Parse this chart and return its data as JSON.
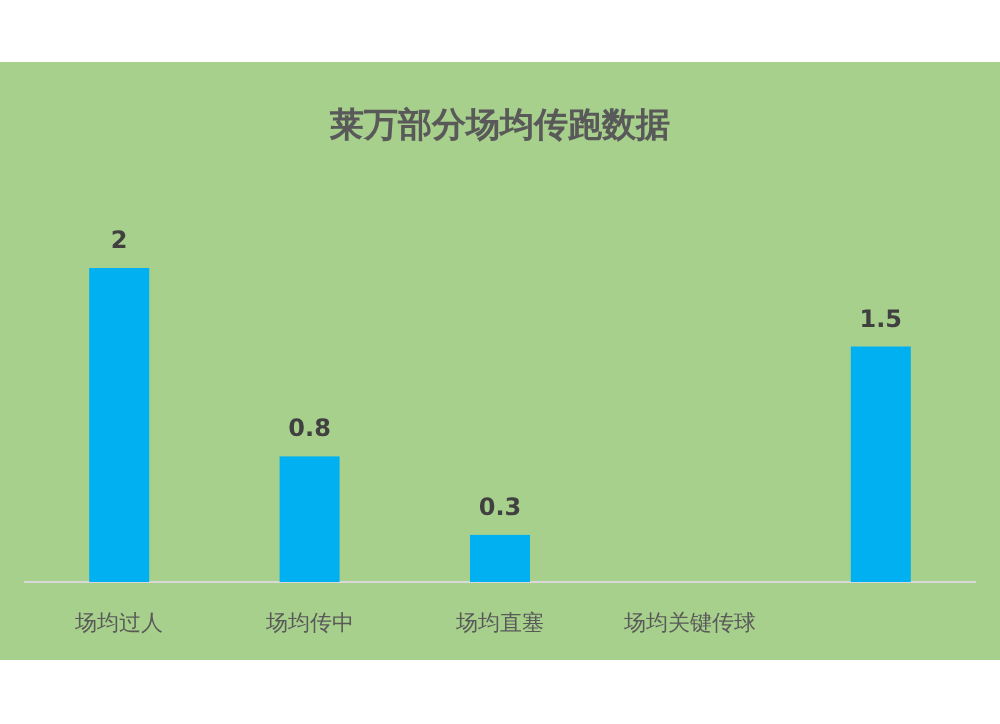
{
  "chart_data": {
    "type": "bar",
    "title": "莱万部分场均传跑数据",
    "categories": [
      "场均过人",
      "场均传中",
      "场均直塞",
      "场均关键传球",
      null
    ],
    "values": [
      2,
      0.8,
      0.3,
      null,
      1.5
    ],
    "color": "#00b0f0",
    "value_labels": [
      "2",
      "0.8",
      "0.3",
      null,
      "1.5"
    ]
  }
}
